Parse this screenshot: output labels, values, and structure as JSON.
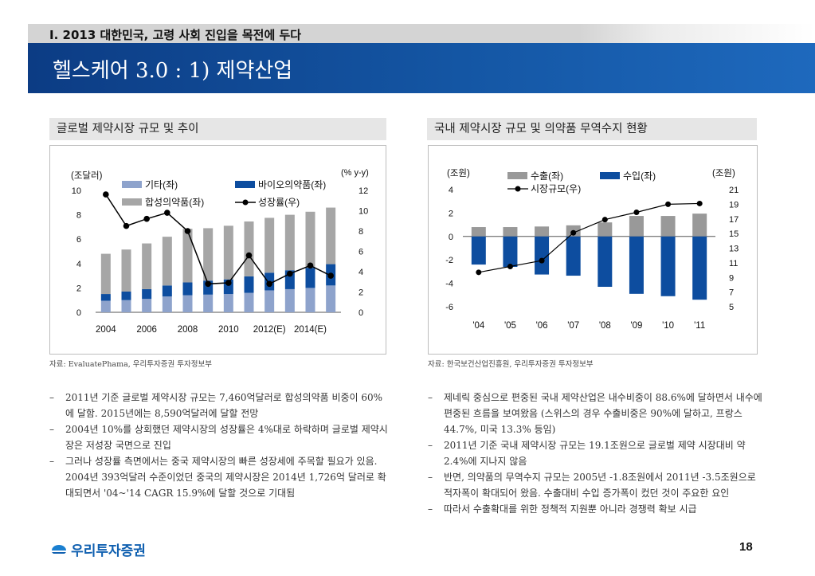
{
  "header": {
    "section_title": "I. 2013 대한민국, 고령 사회 진입을 목전에 두다",
    "page_title": "헬스케어 3.0 : 1) 제약산업"
  },
  "left_panel": {
    "heading": "글로벌 제약시장 규모 및 추이",
    "source": "자료: EvaluatePhama, 우리투자증권 투자정보부",
    "bullets": [
      "2011년 기준 글로벌 제약시장 규모는 7,460억달러로 합성의약품 비중이 60%에 달함. 2015년에는 8,590억달러에 달할 전망",
      "2004년 10%를 상회했던 제약시장의 성장률은 4%대로 하락하며 글로벌 제약시장은 저성장 국면으로 진입",
      "그러나 성장률 측면에서는 중국 제약시장의 빠른 성장세에 주목할 필요가 있음. 2004년 393억달러 수준이었던 중국의 제약시장은 2014년 1,726억 달러로 확대되면서 '04~'14 CAGR 15.9%에 달할 것으로 기대됨"
    ]
  },
  "right_panel": {
    "heading": "국내 제약시장 규모 및 의약품 무역수지 현황",
    "source": "자료: 한국보건산업진흥원, 우리투자증권 투자정보부",
    "bullets": [
      "제네릭 중심으로 편중된 국내 제약산업은 내수비중이 88.6%에 달하면서 내수에 편중된 흐름을 보여왔음 (스위스의 경우 수출비중은 90%에 달하고, 프랑스 44.7%, 미국 13.3% 등임)",
      "2011년 기준 국내 제약시장 규모는 19.1조원으로 글로벌 제약 시장대비 약 2.4%에 지나지 않음",
      "반면, 의약품의 무역수지 규모는 2005년 -1.8조원에서 2011년 -3.5조원으로 적자폭이 확대되어 왔음. 수출대비 수입 증가폭이 컸던 것이 주요한 요인",
      "따라서 수출확대를 위한 정책적 지원뿐 아니라 경쟁력 확보 시급"
    ]
  },
  "footer": {
    "logo_text": "우리투자증권",
    "page_number": "18"
  },
  "colors": {
    "other": "#8ea3cc",
    "bio": "#0d4d9f",
    "synthetic": "#a6a6a6",
    "growth": "#000000",
    "export": "#999999",
    "import": "#0d4d9f",
    "banner": "#1456a4"
  },
  "chart_data": [
    {
      "type": "bar",
      "stacked": true,
      "categories": [
        "2004",
        "2005",
        "2006",
        "2007",
        "2008",
        "2009",
        "2010",
        "2011",
        "2012(E)",
        "2013(E)",
        "2014(E)",
        "2015(E)"
      ],
      "x_tick_labels": [
        "2004",
        "2006",
        "2008",
        "2010",
        "2012(E)",
        "2014(E)"
      ],
      "left_axis_unit": "(조달러)",
      "right_axis_unit": "(% y-y)",
      "ylim": [
        0,
        10
      ],
      "y_ticks": [
        0,
        2,
        4,
        6,
        8,
        10
      ],
      "y2lim": [
        0,
        12
      ],
      "y2_ticks": [
        0,
        2,
        4,
        6,
        8,
        10,
        12
      ],
      "series": [
        {
          "name": "기타(좌)",
          "axis": "left",
          "kind": "bar",
          "values": [
            0.95,
            1.0,
            1.1,
            1.3,
            1.4,
            1.45,
            1.5,
            1.6,
            1.8,
            1.9,
            2.0,
            2.2
          ]
        },
        {
          "name": "바이오의약품(좌)",
          "axis": "left",
          "kind": "bar",
          "values": [
            0.55,
            0.7,
            0.8,
            0.9,
            1.05,
            1.15,
            1.2,
            1.35,
            1.45,
            1.55,
            1.65,
            1.75
          ]
        },
        {
          "name": "합성의약품(좌)",
          "axis": "left",
          "kind": "bar",
          "values": [
            3.3,
            3.45,
            3.75,
            4.0,
            4.4,
            4.3,
            4.4,
            4.5,
            4.5,
            4.55,
            4.6,
            4.64
          ]
        },
        {
          "name": "성장률(우)",
          "axis": "right",
          "kind": "line",
          "values": [
            11.6,
            8.5,
            9.2,
            9.8,
            8.0,
            2.8,
            2.9,
            5.6,
            2.8,
            3.8,
            4.6,
            3.6
          ]
        }
      ],
      "legend": "top"
    },
    {
      "type": "bar",
      "categories": [
        "'04",
        "'05",
        "'06",
        "'07",
        "'08",
        "'09",
        "'10",
        "'11"
      ],
      "left_axis_unit": "(조원)",
      "right_axis_unit": "(조원)",
      "ylim": [
        -6,
        4
      ],
      "y_ticks": [
        -6,
        -4,
        -2,
        0,
        2,
        4
      ],
      "y2lim": [
        5,
        21
      ],
      "y2_ticks": [
        5,
        7,
        9,
        11,
        13,
        15,
        17,
        19,
        21
      ],
      "series": [
        {
          "name": "수출(좌)",
          "axis": "left",
          "kind": "bar",
          "values": [
            0.8,
            0.8,
            0.85,
            0.95,
            1.2,
            1.75,
            1.75,
            1.95
          ]
        },
        {
          "name": "수입(좌)",
          "axis": "left",
          "kind": "bar",
          "values": [
            -2.4,
            -2.6,
            -3.25,
            -3.35,
            -4.3,
            -4.9,
            -5.1,
            -5.4
          ]
        },
        {
          "name": "시장규모(우)",
          "axis": "right",
          "kind": "line",
          "values": [
            9.7,
            10.5,
            11.3,
            15.1,
            16.9,
            17.9,
            19.0,
            19.1
          ]
        }
      ],
      "legend": "top"
    }
  ]
}
